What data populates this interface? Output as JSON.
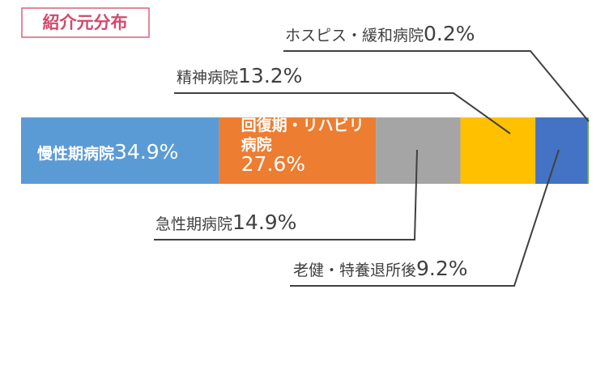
{
  "chart_data": {
    "type": "stacked-bar-100",
    "title": "紹介元分布",
    "categories": [
      "慢性期病院",
      "回復期・リハビリ病院",
      "急性期病院",
      "精神病院",
      "老健・特養退所後",
      "ホスピス・緩和病院"
    ],
    "values": [
      34.9,
      27.6,
      14.9,
      13.2,
      9.2,
      0.2
    ],
    "value_labels": [
      "34.9%",
      "27.6%",
      "14.9%",
      "13.2%",
      "9.2%",
      "0.2%"
    ],
    "colors": [
      "#5b9bd5",
      "#ed7d31",
      "#a5a5a5",
      "#ffc000",
      "#4472c4",
      "#70ad47"
    ]
  }
}
